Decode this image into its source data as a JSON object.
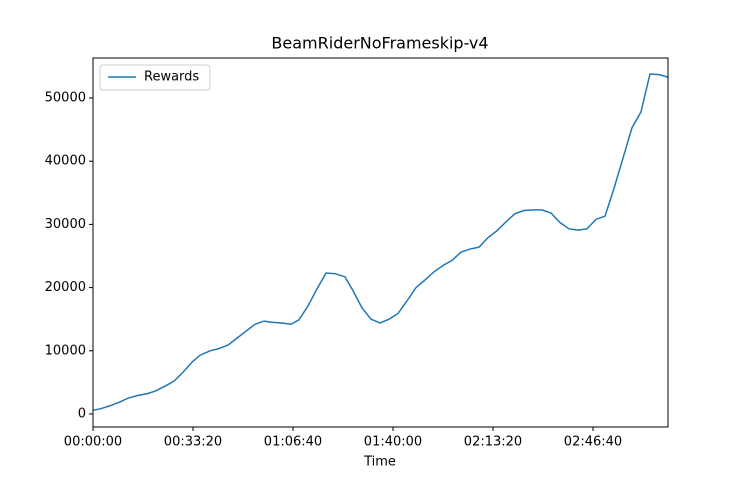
{
  "chart_data": {
    "type": "line",
    "title": "BeamRiderNoFrameskip-v4",
    "x_label": "Time",
    "x": [
      0,
      140,
      340,
      540,
      700,
      880,
      1080,
      1240,
      1440,
      1620,
      1800,
      1980,
      2140,
      2340,
      2500,
      2700,
      2880,
      3060,
      3240,
      3420,
      3600,
      3780,
      3960,
      4120,
      4300,
      4480,
      4660,
      4840,
      5040,
      5200,
      5380,
      5560,
      5740,
      5920,
      6100,
      6280,
      6460,
      6640,
      6820,
      7000,
      7180,
      7360,
      7540,
      7720,
      7900,
      8080,
      8260,
      8440,
      8620,
      8800,
      8980,
      9160,
      9340,
      9520,
      9700,
      9880,
      10060,
      10240,
      10420,
      10600,
      10780,
      10960,
      11140,
      11320,
      11500
    ],
    "series": [
      {
        "name": "Rewards",
        "color": "#1f77b4",
        "values": [
          600,
          800,
          1300,
          1900,
          2500,
          2900,
          3200,
          3600,
          4400,
          5200,
          6600,
          8200,
          9300,
          10000,
          10300,
          10900,
          12000,
          13100,
          14200,
          14700,
          14500,
          14400,
          14200,
          14900,
          17100,
          19800,
          22300,
          22200,
          21700,
          19500,
          16800,
          15000,
          14400,
          15000,
          15900,
          17900,
          20000,
          21200,
          22500,
          23500,
          24300,
          25600,
          26100,
          26400,
          27900,
          29000,
          30400,
          31700,
          32200,
          32300,
          32300,
          31800,
          30300,
          29300,
          29100,
          29300,
          30800,
          31300,
          35700,
          40500,
          45300,
          47800,
          53800,
          53700,
          53300
        ]
      }
    ],
    "xlim": [
      0,
      11500
    ],
    "xticks": [
      {
        "value": 0,
        "label": "00:00:00"
      },
      {
        "value": 2000,
        "label": "00:33:20"
      },
      {
        "value": 4000,
        "label": "01:06:40"
      },
      {
        "value": 6000,
        "label": "01:40:00"
      },
      {
        "value": 8000,
        "label": "02:13:20"
      },
      {
        "value": 10000,
        "label": "02:46:40"
      }
    ],
    "ylim": [
      -2060,
      56330
    ],
    "yticks": [
      0,
      10000,
      20000,
      30000,
      40000,
      50000
    ],
    "legend": "upper left",
    "grid": false
  }
}
